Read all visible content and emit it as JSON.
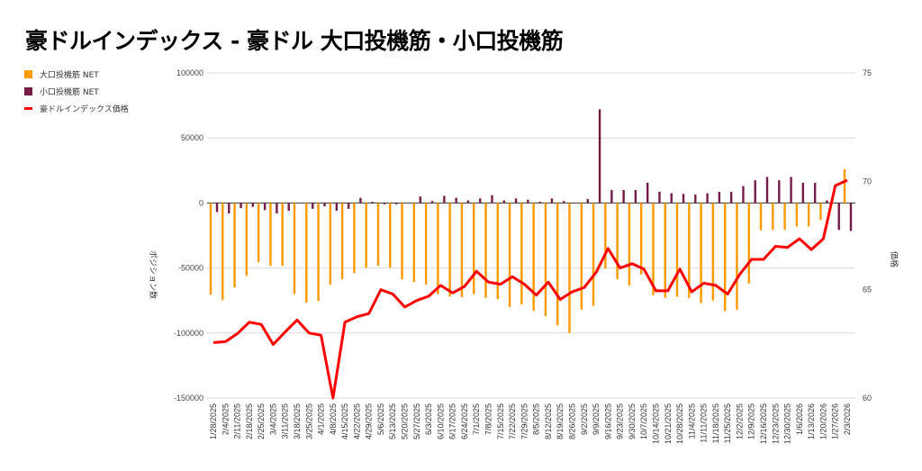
{
  "title": "豪ドルインデックス - 豪ドル 大口投機筋・小口投機筋",
  "chart_data": {
    "type": "bar+line",
    "title": "豪ドルインデックス - 豪ドル 大口投機筋・小口投機筋",
    "ylabel": "ポジション数",
    "y2label": "価格",
    "ylim": [
      -150000,
      100000
    ],
    "y2lim": [
      60,
      75
    ],
    "yticks": [
      "100000",
      "50000",
      "0",
      "-50000",
      "-100000",
      "-150000"
    ],
    "ytick_values": [
      100000,
      50000,
      0,
      -50000,
      -100000,
      -150000
    ],
    "y2ticks": [
      "75",
      "70",
      "65",
      "60"
    ],
    "y2tick_values": [
      75,
      70,
      65,
      60
    ],
    "grid": true,
    "legend_position": "top-left",
    "categories": [
      "1/28/2025",
      "2/4/2025",
      "2/11/2025",
      "2/18/2025",
      "2/25/2025",
      "3/4/2025",
      "3/11/2025",
      "3/18/2025",
      "3/25/2025",
      "4/1/2025",
      "4/8/2025",
      "4/15/2025",
      "4/22/2025",
      "4/29/2025",
      "5/6/2025",
      "5/13/2025",
      "5/20/2025",
      "5/27/2025",
      "6/3/2025",
      "6/10/2025",
      "6/17/2025",
      "6/24/2025",
      "7/1/2025",
      "7/8/2025",
      "7/15/2025",
      "7/22/2025",
      "7/29/2025",
      "8/5/2025",
      "8/12/2025",
      "8/19/2025",
      "8/26/2025",
      "9/2/2025",
      "9/9/2025",
      "9/16/2025",
      "9/23/2025",
      "9/30/2025",
      "10/7/2025",
      "10/14/2025",
      "10/21/2025",
      "10/28/2025",
      "11/4/2025",
      "11/11/2025",
      "11/18/2025",
      "11/25/2025",
      "12/2/2025",
      "12/9/2025",
      "12/16/2025",
      "12/23/2025",
      "12/30/2025",
      "1/6/2026",
      "1/13/2026",
      "1/20/2026",
      "1/27/2026",
      "2/3/2026"
    ],
    "series": [
      {
        "name": "大口投機筋  NET",
        "type": "bar",
        "axis": "left",
        "color": "#ff9900",
        "values": [
          -70500,
          -74600,
          -65000,
          -56000,
          -45600,
          -48300,
          -48300,
          -70000,
          -76700,
          -75300,
          -62800,
          -58700,
          -53900,
          -49700,
          -48300,
          -49700,
          -58700,
          -60800,
          -62800,
          -70000,
          -72000,
          -72500,
          -70000,
          -73000,
          -74000,
          -80000,
          -78000,
          -82800,
          -87000,
          -94000,
          -100000,
          -82000,
          -79000,
          -50400,
          -58700,
          -63500,
          -55000,
          -71000,
          -73000,
          -72000,
          -73000,
          -77000,
          -75000,
          -83000,
          -82000,
          -62000,
          -21000,
          -20700,
          -20700,
          -18000,
          -18000,
          -13000,
          500,
          26000
        ]
      },
      {
        "name": "小口投機筋  NET",
        "type": "bar",
        "axis": "left",
        "color": "#741b47",
        "values": [
          -7000,
          -8000,
          -4000,
          -3000,
          -5500,
          -8000,
          -6000,
          0,
          -4500,
          -2500,
          -6000,
          -4500,
          4000,
          1000,
          -1000,
          -1000,
          0,
          5000,
          1500,
          5500,
          4000,
          2000,
          3500,
          6000,
          2000,
          3500,
          2500,
          1000,
          3500,
          1500,
          0,
          3000,
          72000,
          10000,
          10000,
          10000,
          15600,
          8700,
          7500,
          7000,
          6500,
          7500,
          8500,
          8500,
          13000,
          17500,
          20000,
          17500,
          20000,
          15500,
          15500,
          2000,
          -20700,
          -21500
        ]
      },
      {
        "name": "豪ドルインデックス価格",
        "type": "line",
        "axis": "right",
        "color": "#ff0000",
        "values": [
          62.56,
          62.6,
          62.97,
          63.5,
          63.4,
          62.47,
          63.05,
          63.6,
          63.0,
          62.9,
          60.0,
          63.5,
          63.75,
          63.9,
          65.0,
          64.8,
          64.2,
          64.5,
          64.7,
          65.2,
          64.85,
          65.15,
          65.85,
          65.35,
          65.25,
          65.6,
          65.25,
          64.75,
          65.35,
          64.55,
          64.9,
          65.1,
          65.8,
          66.9,
          66.0,
          66.2,
          65.95,
          64.95,
          64.95,
          65.95,
          64.9,
          65.3,
          65.2,
          64.8,
          65.7,
          66.4,
          66.4,
          67.0,
          66.95,
          67.35,
          66.85,
          67.35,
          69.8,
          70.05
        ]
      }
    ]
  }
}
